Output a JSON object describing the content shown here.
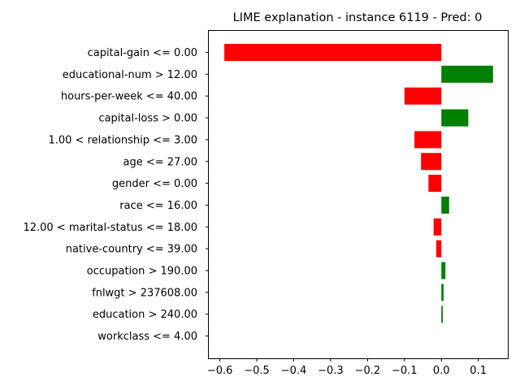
{
  "chart_data": {
    "type": "bar",
    "orientation": "horizontal",
    "title": "LIME explanation - instance 6119 - Pred: 0",
    "xlabel": "",
    "ylabel": "",
    "xlim": [
      -0.63,
      0.18
    ],
    "grid": false,
    "legend": "none",
    "x_ticks": [
      -0.6,
      -0.5,
      -0.4,
      -0.3,
      -0.2,
      -0.1,
      0.0,
      0.1
    ],
    "x_tick_labels": [
      "−0.6",
      "−0.5",
      "−0.4",
      "−0.3",
      "−0.2",
      "−0.1",
      "0.0",
      "0.1"
    ],
    "colors": {
      "positive": "#008000",
      "negative": "#ff0000"
    },
    "categories": [
      "capital-gain <= 0.00",
      "educational-num > 12.00",
      "hours-per-week <= 40.00",
      "capital-loss > 0.00",
      "1.00 < relationship <= 3.00",
      "age <= 27.00",
      "gender <= 0.00",
      "race <= 16.00",
      "12.00 < marital-status <= 18.00",
      "native-country <= 39.00",
      "occupation > 190.00",
      "fnlwgt > 237608.00",
      "education > 240.00",
      "workclass <= 4.00"
    ],
    "values": [
      -0.588,
      0.14,
      -0.1,
      0.073,
      -0.073,
      -0.055,
      -0.035,
      0.021,
      -0.021,
      -0.014,
      0.011,
      0.006,
      0.004,
      0.0
    ]
  }
}
